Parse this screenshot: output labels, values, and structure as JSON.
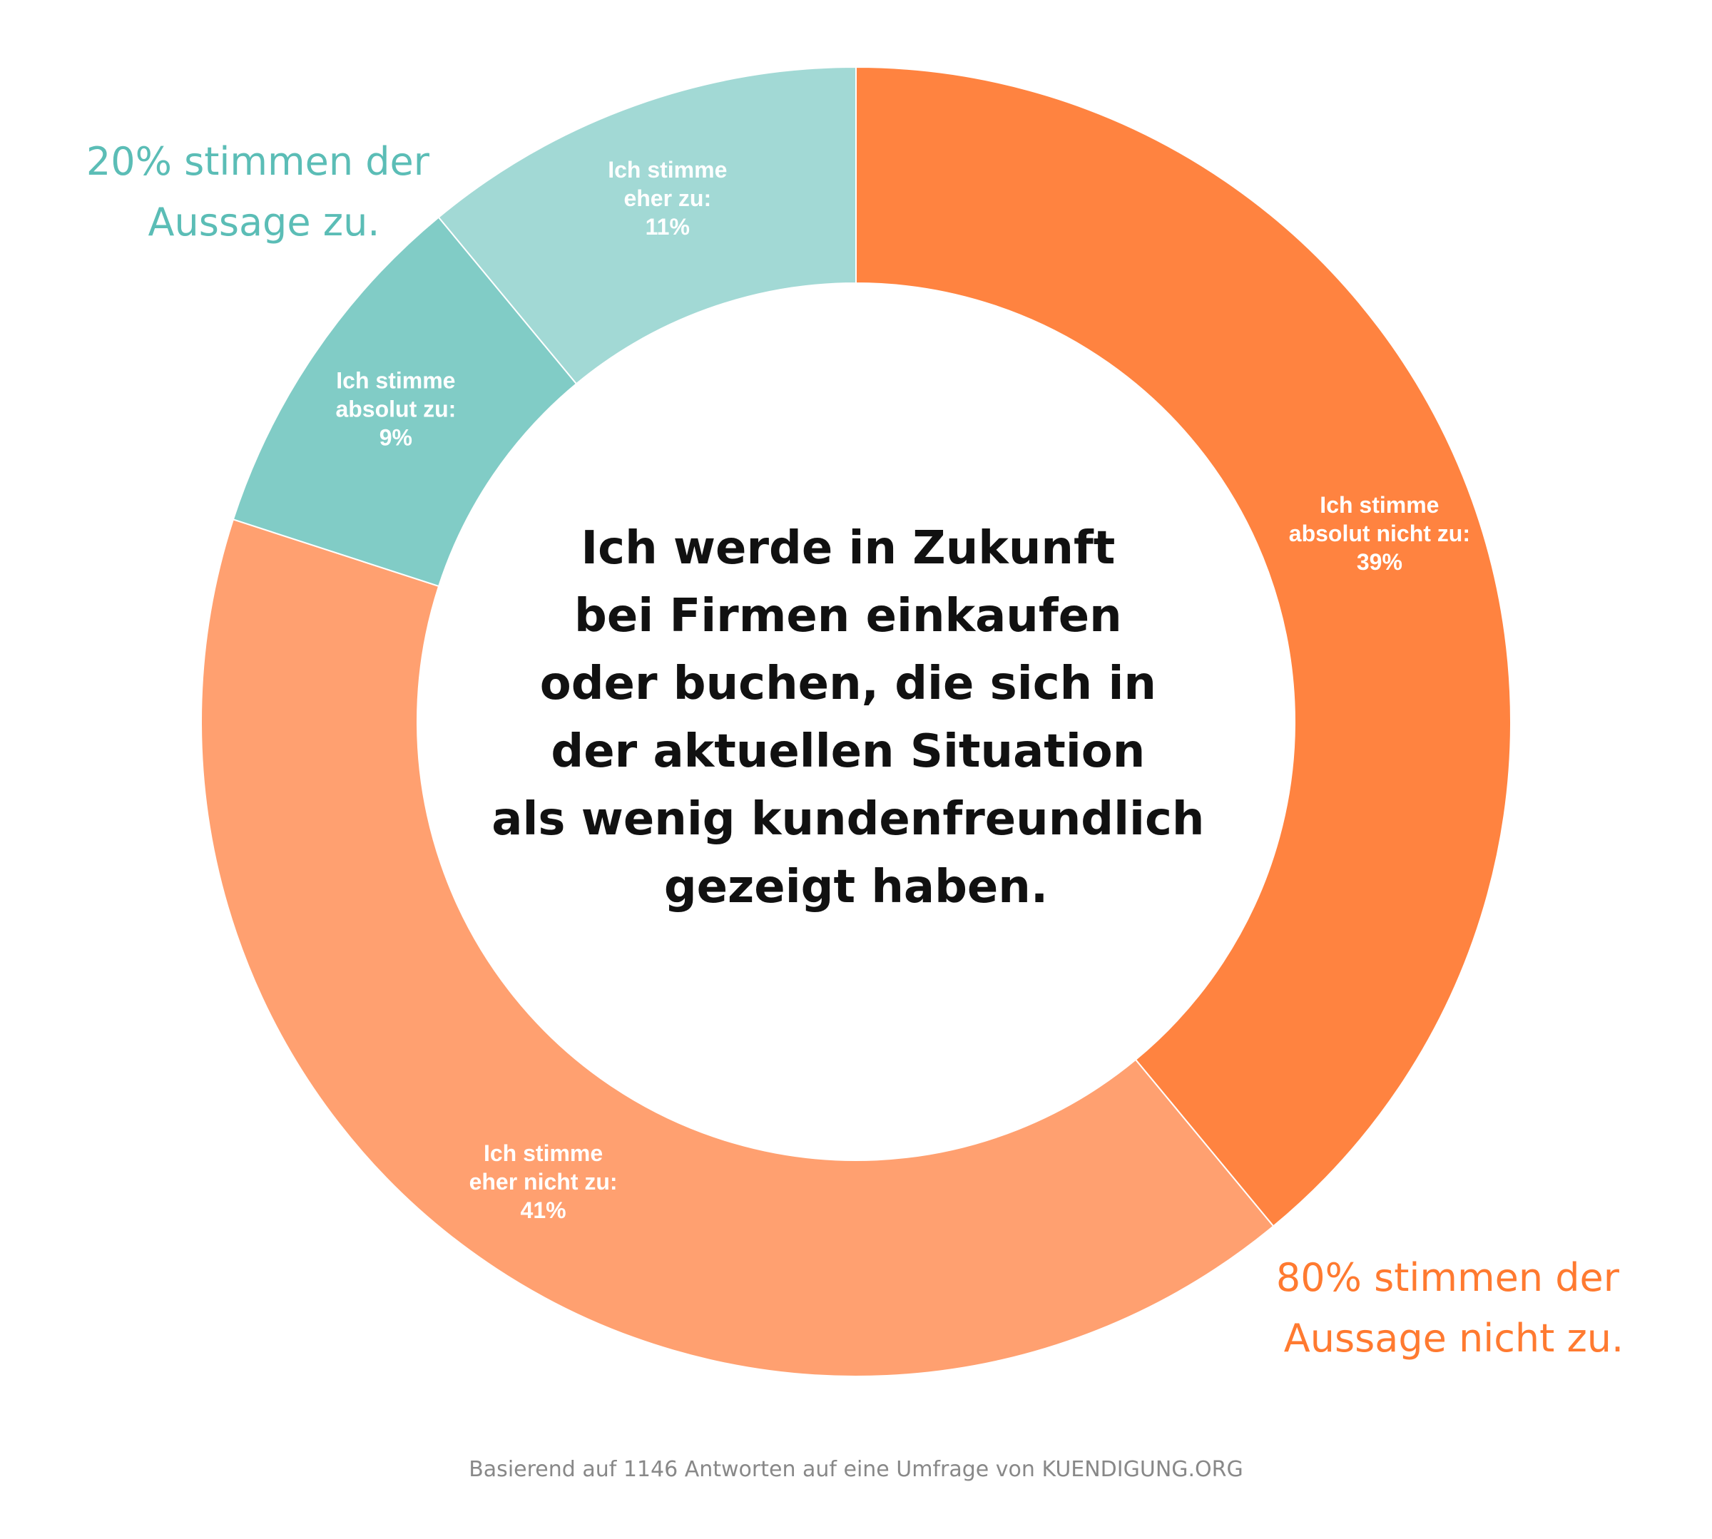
{
  "chart_data": {
    "type": "pie",
    "title": "Ich werde in Zukunft bei Firmen einkaufen oder buchen, die sich in der aktuellen Situation als wenig kundenfreundlich gezeigt haben.",
    "title_lines": [
      "Ich werde in Zukunft",
      "bei Firmen einkaufen",
      "oder buchen, die sich in",
      "der aktuellen Situation",
      "als wenig kundenfreundlich",
      "gezeigt haben."
    ],
    "slices": [
      {
        "label_lines": [
          "Ich stimme",
          "absolut nicht zu:",
          "39%"
        ],
        "value": 39,
        "color": "#ff8340"
      },
      {
        "label_lines": [
          "Ich stimme",
          "eher nicht zu:",
          "41%"
        ],
        "value": 41,
        "color": "#ffa070"
      },
      {
        "label_lines": [
          "Ich stimme",
          "absolut zu:",
          "9%"
        ],
        "value": 9,
        "color": "#81ccc6"
      },
      {
        "label_lines": [
          "Ich stimme",
          "eher zu:",
          "11%"
        ],
        "value": 11,
        "color": "#a2d9d5"
      }
    ],
    "group_notes": [
      {
        "lines": [
          "20% stimmen der",
          "Aussage zu."
        ],
        "color": "#5bbdb6"
      },
      {
        "lines": [
          "80% stimmen der",
          "Aussage nicht zu."
        ],
        "color": "#ff7a30"
      }
    ],
    "source": "Basierend auf 1146 Antworten auf eine Umfrage von KUENDIGUNG.ORG"
  }
}
